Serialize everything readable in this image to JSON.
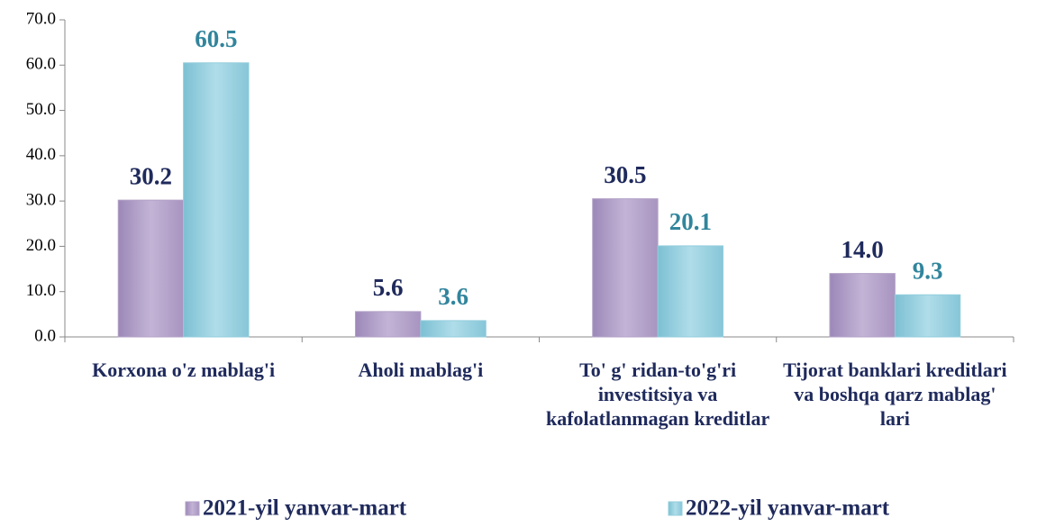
{
  "chart_data": {
    "type": "bar",
    "categories": [
      "Korxona o'z mablag'i",
      "Aholi mablag'i",
      "To' g' ridan-to'g'ri investitsiya va kafolatlanmagan kreditlar",
      "Tijorat banklari kreditlari va boshqa qarz mablag' lari"
    ],
    "series": [
      {
        "name": "2021-yil yanvar-mart",
        "color": "#b3a2c7",
        "label_color": "#1f2a5c",
        "values": [
          30.2,
          5.6,
          30.5,
          14.0
        ],
        "value_labels": [
          "30.2",
          "5.6",
          "30.5",
          "14.0"
        ]
      },
      {
        "name": "2022-yil yanvar-mart",
        "color": "#93cddd",
        "label_color": "#31859c",
        "values": [
          60.5,
          3.6,
          20.1,
          9.3
        ],
        "value_labels": [
          "60.5",
          "3.6",
          "20.1",
          "9.3"
        ]
      }
    ],
    "ylim": [
      0,
      70
    ],
    "yticks": [
      {
        "value": 0,
        "label": "0.0"
      },
      {
        "value": 10,
        "label": "10.0"
      },
      {
        "value": 20,
        "label": "20.0"
      },
      {
        "value": 30,
        "label": "30.0"
      },
      {
        "value": 40,
        "label": "40.0"
      },
      {
        "value": 50,
        "label": "50.0"
      },
      {
        "value": 60,
        "label": "60.0"
      },
      {
        "value": 70,
        "label": "70.0"
      }
    ]
  }
}
